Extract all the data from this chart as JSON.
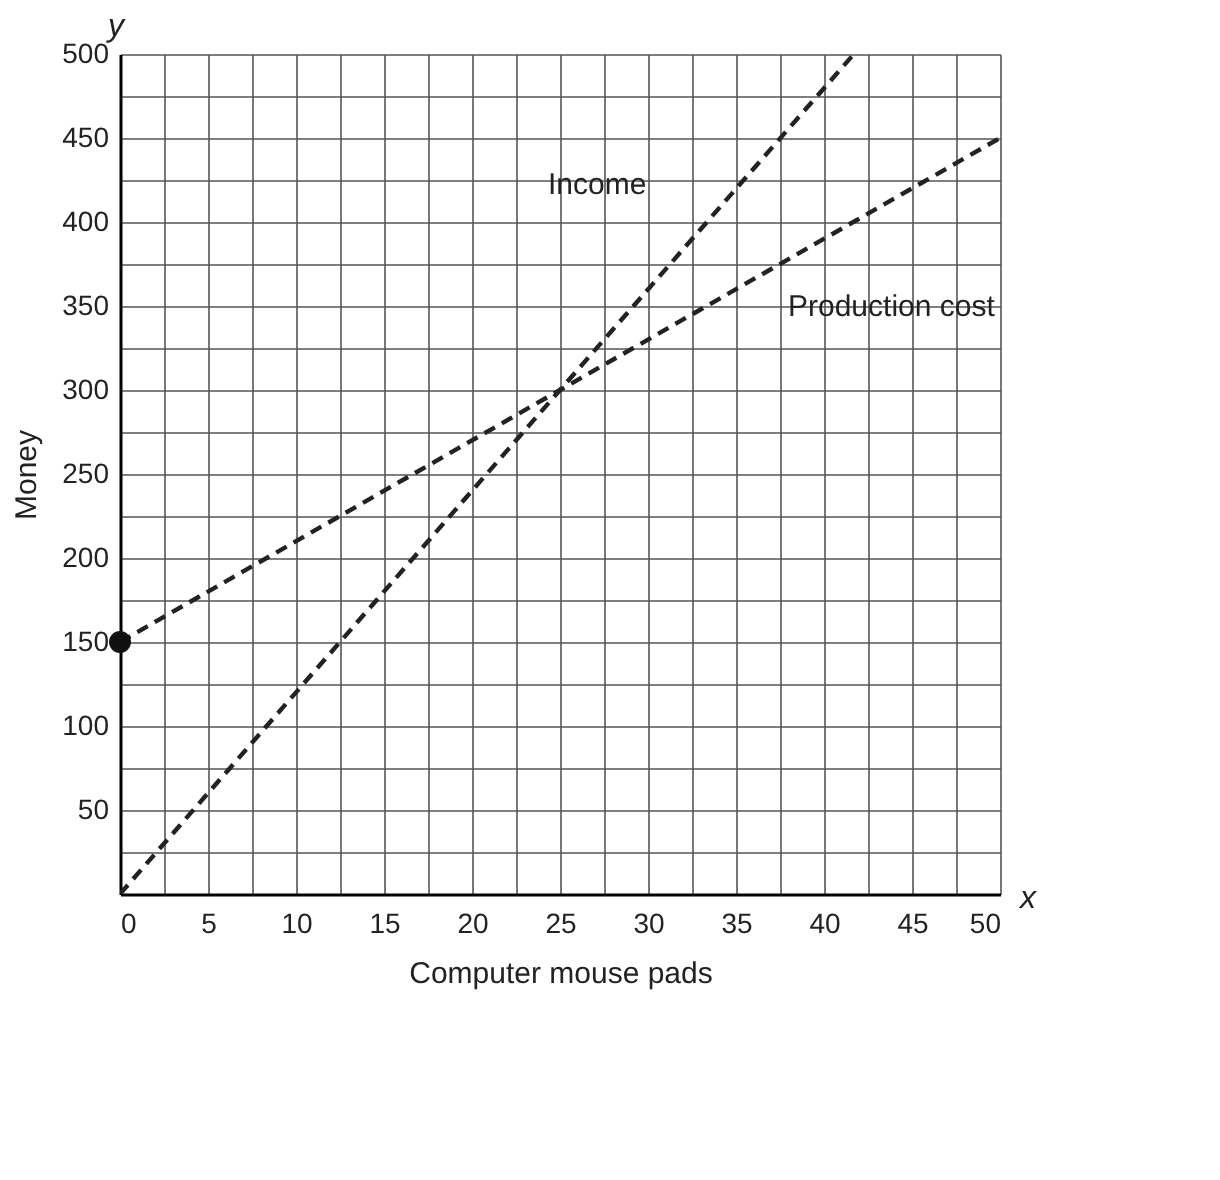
{
  "chart_data": {
    "type": "line",
    "xlabel": "Computer mouse pads",
    "ylabel": "Money",
    "annotations": [
      "y",
      "x"
    ],
    "series": [
      {
        "name": "Income",
        "color": "#222222",
        "x": [
          0,
          25,
          41.7
        ],
        "values": [
          0,
          300,
          500
        ],
        "line_style": "dashed",
        "marker": "none"
      },
      {
        "name": "Production cost",
        "color": "#222222",
        "x": [
          0,
          25,
          50
        ],
        "values": [
          150,
          300,
          450
        ],
        "line_style": "dashed",
        "marker": "none"
      },
      {
        "type": "scatter",
        "color": "#111111",
        "x": [
          0
        ],
        "values": [
          150
        ],
        "marker": "circle"
      }
    ],
    "xlim": [
      0,
      50
    ],
    "ylim": [
      0,
      500
    ],
    "xticks": [
      0,
      {
        "value": 2.5,
        "label": null
      },
      5,
      {
        "value": 7.5,
        "label": null
      },
      10,
      {
        "value": 12.5,
        "label": null
      },
      15,
      {
        "value": 17.5,
        "label": null
      },
      20,
      {
        "value": 22.5,
        "label": null
      },
      25,
      {
        "value": 27.5,
        "label": null
      },
      30,
      {
        "value": 32.5,
        "label": null
      },
      35,
      {
        "value": 37.5,
        "label": null
      },
      40,
      {
        "value": 42.5,
        "label": null
      },
      45,
      {
        "value": 47.5,
        "label": null
      },
      50
    ],
    "yticks": [
      {
        "value": 0,
        "label": null
      },
      {
        "value": 25,
        "label": null
      },
      50,
      {
        "value": 75,
        "label": null
      },
      100,
      {
        "value": 125,
        "label": null
      },
      150,
      {
        "value": 175,
        "label": null
      },
      200,
      {
        "value": 225,
        "label": null
      },
      250,
      {
        "value": 275,
        "label": null
      },
      300,
      {
        "value": 325,
        "label": null
      },
      350,
      {
        "value": 375,
        "label": null
      },
      400,
      {
        "value": 425,
        "label": null
      },
      450,
      {
        "value": 475,
        "label": null
      },
      500
    ],
    "grid": true
  }
}
